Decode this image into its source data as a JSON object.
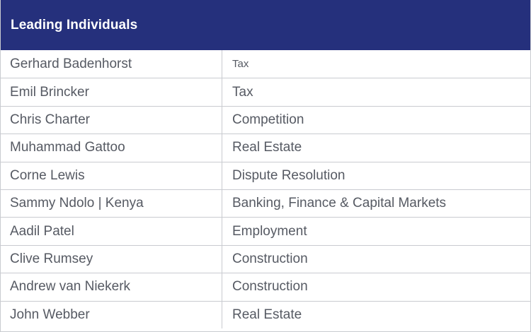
{
  "header": {
    "title": "Leading Individuals",
    "background": "#25307c"
  },
  "rows": [
    {
      "name": "Gerhard Badenhorst",
      "practice": "Tax"
    },
    {
      "name": "Emil Brincker",
      "practice": "Tax"
    },
    {
      "name": "Chris Charter",
      "practice": "Competition"
    },
    {
      "name": "Muhammad Gattoo",
      "practice": "Real Estate"
    },
    {
      "name": "Corne Lewis",
      "practice": "Dispute Resolution"
    },
    {
      "name": "Sammy Ndolo | Kenya",
      "practice": "Banking, Finance & Capital Markets"
    },
    {
      "name": "Aadil Patel",
      "practice": "Employment"
    },
    {
      "name": "Clive Rumsey",
      "practice": "Construction"
    },
    {
      "name": "Andrew van Niekerk",
      "practice": "Construction"
    },
    {
      "name": "John Webber",
      "practice": "Real Estate"
    }
  ]
}
